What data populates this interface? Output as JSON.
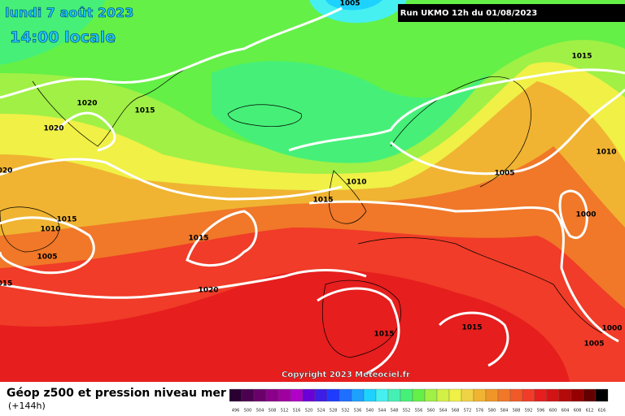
{
  "header": {
    "date": "lundi 7 août 2023",
    "time": "14:00 locale",
    "run": "Run UKMO 12h du 01/08/2023"
  },
  "isobar_labels": [
    "1005",
    "1015",
    "1020",
    "1015",
    "1020",
    "1010",
    "1005",
    "1010",
    "1015",
    "1000",
    "1015",
    "1010",
    "1005",
    "1015",
    "020",
    "015",
    "1020",
    "1015",
    "1015",
    "1000",
    "1005"
  ],
  "copyright": "Copyright 2023 Meteociel.fr",
  "footer": {
    "title": "Géop z500 et pression niveau mer",
    "lead": "(+144h)"
  },
  "legend": {
    "values": [
      496,
      500,
      504,
      508,
      512,
      516,
      520,
      524,
      528,
      532,
      536,
      540,
      544,
      548,
      552,
      556,
      560,
      564,
      568,
      572,
      576,
      580,
      584,
      588,
      592,
      596,
      600,
      604,
      608,
      612,
      616
    ],
    "colors": [
      "#2a0033",
      "#4b0050",
      "#6a006a",
      "#8a008a",
      "#a000a0",
      "#b000c8",
      "#6a00d8",
      "#3c1ee6",
      "#1e3cff",
      "#1e6eff",
      "#1ea0ff",
      "#1ed2ff",
      "#46f0f0",
      "#46f0b4",
      "#46f078",
      "#64f046",
      "#a0f046",
      "#d2f046",
      "#f0f046",
      "#f0d246",
      "#f0b432",
      "#f09628",
      "#f07828",
      "#f05a28",
      "#f03c28",
      "#e61e1e",
      "#d21414",
      "#b40a0a",
      "#960000",
      "#640000",
      "#000000"
    ]
  }
}
